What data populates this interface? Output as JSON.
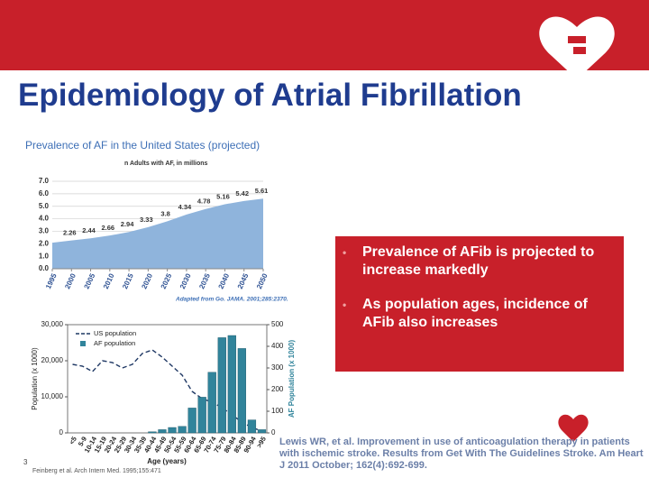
{
  "header": {
    "title": "Epidemiology of Atrial Fibrillation"
  },
  "chart_data": [
    {
      "type": "area",
      "title": "Prevalence of AF in the United States (projected)",
      "subtitle": "n Adults with AF, in millions",
      "source": "Adapted from Go. JAMA. 2001;285:2370.",
      "x": [
        1995,
        2000,
        2005,
        2010,
        2015,
        2020,
        2025,
        2030,
        2035,
        2040,
        2045,
        2050
      ],
      "xlim": [
        1995,
        2050
      ],
      "xticks": [
        1995,
        2000,
        2005,
        2010,
        2015,
        2020,
        2025,
        2030,
        2035,
        2040,
        2045,
        2050
      ],
      "values": [
        2.08,
        2.26,
        2.44,
        2.66,
        2.94,
        3.33,
        3.8,
        4.34,
        4.78,
        5.16,
        5.42,
        5.61
      ],
      "value_labels": [
        null,
        "2.26",
        "2.44",
        "2.66",
        "2.94",
        "3.33",
        "3.8",
        "4.34",
        "4.78",
        "5.16",
        "5.42",
        "5.61"
      ],
      "color": "#8fb4dc",
      "ylim": [
        0,
        7
      ],
      "yticks": [
        {
          "value": 0,
          "label": "0.0"
        },
        {
          "value": 1,
          "label": "1.0"
        },
        {
          "value": 2,
          "label": "2.0"
        },
        {
          "value": 3,
          "label": "3.0"
        },
        {
          "value": 4,
          "label": "4.0"
        },
        {
          "value": 5,
          "label": "5.0"
        },
        {
          "value": 6,
          "label": "6.0"
        },
        {
          "value": 7,
          "label": "7.0"
        }
      ],
      "grid": true
    },
    {
      "type": "bar_line",
      "categories": [
        "<5",
        "5-9",
        "10-14",
        "15-19",
        "20-24",
        "25-29",
        "30-34",
        "35-39",
        "40-44",
        "45-49",
        "50-54",
        "55-59",
        "60-64",
        "65-69",
        "70-74",
        "75-79",
        "80-84",
        "85-89",
        "90-94",
        ">95"
      ],
      "series": [
        {
          "name": "US population",
          "color": "#1f3864",
          "values": [
            19000,
            18500,
            17000,
            20000,
            19500,
            18000,
            19000,
            22000,
            23000,
            21000,
            18500,
            16000,
            11500,
            9500,
            8500,
            7000,
            5000,
            3000,
            1500,
            500
          ]
        },
        {
          "name": "AF population",
          "color": "#31849b",
          "axis": "y2",
          "values": [
            0,
            0,
            0,
            0,
            0,
            0,
            0,
            0,
            5,
            15,
            25,
            30,
            115,
            165,
            280,
            440,
            450,
            390,
            60,
            15
          ]
        }
      ],
      "xlabel": "Age (years)",
      "ylabel": "Population (x 1000)",
      "y2label": "AF Population (x 1000)",
      "ylim": [
        0,
        30000
      ],
      "yticks": [
        0,
        {
          "value": 10000,
          "label": "10,000"
        },
        {
          "value": 20000,
          "label": "20,000"
        },
        {
          "value": 30000,
          "label": "30,000"
        }
      ],
      "y2lim": [
        0,
        500
      ],
      "y2ticks": [
        0,
        100,
        200,
        300,
        400,
        500
      ],
      "legend": "upper-left",
      "source": "Feinberg et al. Arch Intern Med. 1995;155:471"
    }
  ],
  "bullets": [
    "Prevalence of AFib is projected to increase markedly",
    "As population ages, incidence of AFib also increases"
  ],
  "reference": "Lewis WR, et al. Improvement in use of anticoagulation therapy in patients with ischemic stroke. Results from Get With The Guidelines Stroke. Am Heart J 2011 October; 162(4):692-699.",
  "slide_number": "3"
}
